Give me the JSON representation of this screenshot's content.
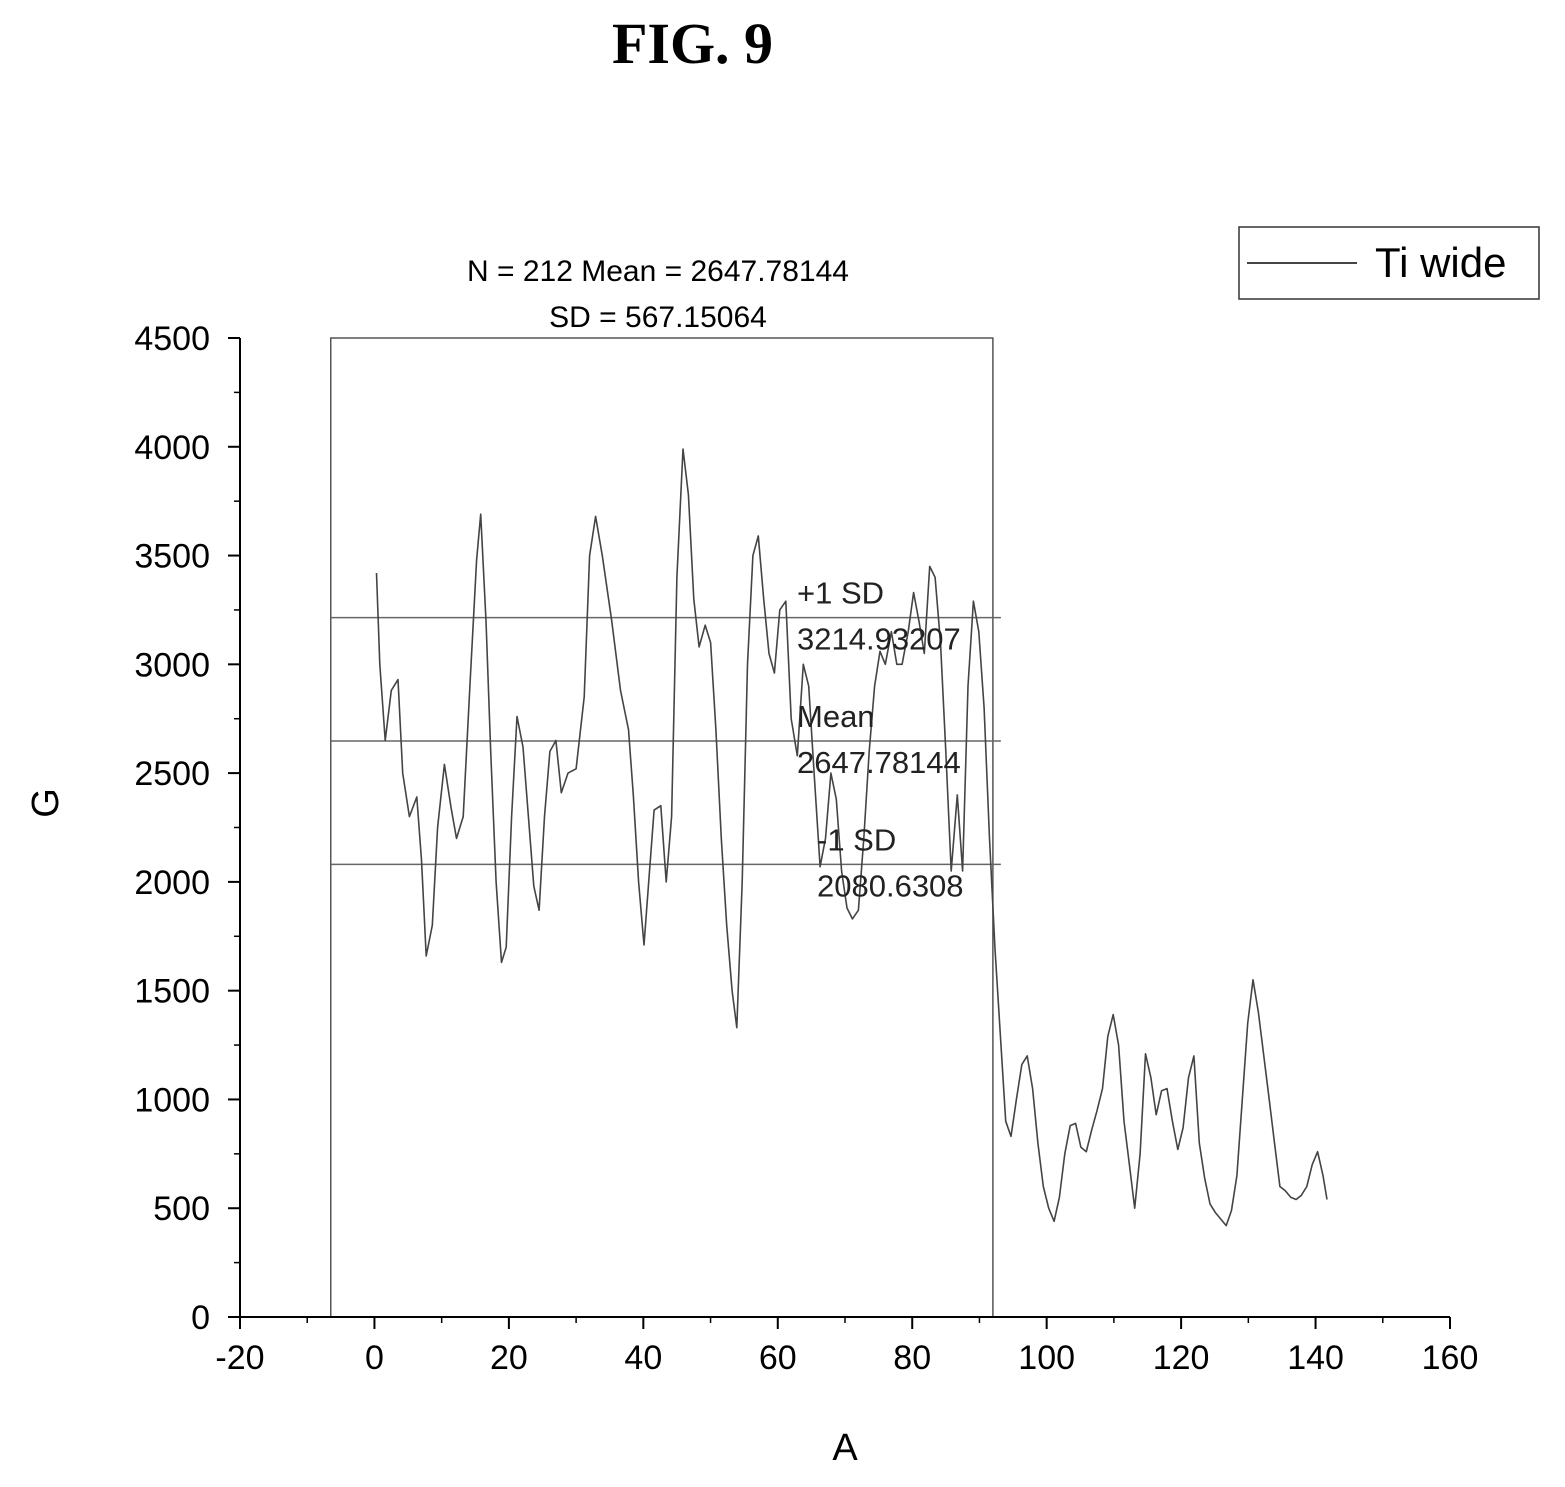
{
  "figure": {
    "title": "FIG. 9"
  },
  "chart_data": {
    "type": "line",
    "xlabel": "A",
    "ylabel": "G",
    "xlim": [
      -20,
      160
    ],
    "ylim": [
      0,
      4500
    ],
    "x_ticks": [
      -20,
      0,
      20,
      40,
      60,
      80,
      100,
      120,
      140,
      160
    ],
    "y_ticks": [
      0,
      500,
      1000,
      1500,
      2000,
      2500,
      3000,
      3500,
      4000,
      4500
    ],
    "grid": false,
    "legend_position": "top-right",
    "series": [
      {
        "name": "Ti wide",
        "color": "#444444",
        "points": [
          [
            0.3,
            3420
          ],
          [
            0.8,
            3000
          ],
          [
            1.6,
            2650
          ],
          [
            2.5,
            2880
          ],
          [
            3.5,
            2930
          ],
          [
            4.2,
            2500
          ],
          [
            5.2,
            2300
          ],
          [
            6.3,
            2390
          ],
          [
            7.0,
            2100
          ],
          [
            7.7,
            1660
          ],
          [
            8.6,
            1800
          ],
          [
            9.4,
            2250
          ],
          [
            10.4,
            2540
          ],
          [
            11.4,
            2340
          ],
          [
            12.2,
            2200
          ],
          [
            13.2,
            2300
          ],
          [
            14.2,
            2900
          ],
          [
            15.2,
            3480
          ],
          [
            15.8,
            3690
          ],
          [
            16.6,
            3200
          ],
          [
            17.3,
            2600
          ],
          [
            18.1,
            2000
          ],
          [
            18.9,
            1630
          ],
          [
            19.6,
            1700
          ],
          [
            20.4,
            2300
          ],
          [
            21.2,
            2760
          ],
          [
            22.1,
            2620
          ],
          [
            22.9,
            2300
          ],
          [
            23.7,
            1980
          ],
          [
            24.5,
            1870
          ],
          [
            25.3,
            2300
          ],
          [
            26.1,
            2600
          ],
          [
            27.0,
            2650
          ],
          [
            27.8,
            2410
          ],
          [
            28.8,
            2500
          ],
          [
            30.0,
            2520
          ],
          [
            31.2,
            2850
          ],
          [
            32.0,
            3500
          ],
          [
            32.9,
            3680
          ],
          [
            33.9,
            3500
          ],
          [
            35.3,
            3200
          ],
          [
            36.6,
            2880
          ],
          [
            37.8,
            2700
          ],
          [
            38.5,
            2400
          ],
          [
            39.3,
            2000
          ],
          [
            40.1,
            1710
          ],
          [
            40.8,
            2000
          ],
          [
            41.6,
            2330
          ],
          [
            42.6,
            2350
          ],
          [
            43.4,
            2000
          ],
          [
            44.2,
            2300
          ],
          [
            45.0,
            3400
          ],
          [
            45.9,
            3990
          ],
          [
            46.7,
            3780
          ],
          [
            47.5,
            3300
          ],
          [
            48.3,
            3080
          ],
          [
            49.2,
            3180
          ],
          [
            50.0,
            3100
          ],
          [
            50.8,
            2700
          ],
          [
            51.6,
            2200
          ],
          [
            52.4,
            1800
          ],
          [
            53.2,
            1500
          ],
          [
            53.9,
            1330
          ],
          [
            54.7,
            2000
          ],
          [
            55.5,
            3000
          ],
          [
            56.3,
            3500
          ],
          [
            57.1,
            3590
          ],
          [
            57.9,
            3300
          ],
          [
            58.7,
            3050
          ],
          [
            59.5,
            2960
          ],
          [
            60.3,
            3250
          ],
          [
            61.2,
            3290
          ],
          [
            62.0,
            2750
          ],
          [
            62.9,
            2580
          ],
          [
            63.8,
            3000
          ],
          [
            64.6,
            2900
          ],
          [
            65.4,
            2500
          ],
          [
            66.3,
            2070
          ],
          [
            67.1,
            2200
          ],
          [
            67.9,
            2500
          ],
          [
            68.7,
            2380
          ],
          [
            69.5,
            2050
          ],
          [
            70.3,
            1880
          ],
          [
            71.1,
            1830
          ],
          [
            72.0,
            1870
          ],
          [
            72.8,
            2200
          ],
          [
            73.6,
            2600
          ],
          [
            74.4,
            2900
          ],
          [
            75.2,
            3060
          ],
          [
            76.0,
            3000
          ],
          [
            76.9,
            3150
          ],
          [
            77.7,
            3000
          ],
          [
            78.5,
            3000
          ],
          [
            79.4,
            3150
          ],
          [
            80.2,
            3330
          ],
          [
            81.0,
            3200
          ],
          [
            81.8,
            3050
          ],
          [
            82.6,
            3450
          ],
          [
            83.4,
            3400
          ],
          [
            84.2,
            3100
          ],
          [
            85.0,
            2600
          ],
          [
            85.8,
            2050
          ],
          [
            86.7,
            2400
          ],
          [
            87.5,
            2050
          ],
          [
            88.3,
            2900
          ],
          [
            89.1,
            3290
          ],
          [
            89.9,
            3150
          ],
          [
            90.7,
            2800
          ],
          [
            91.5,
            2200
          ],
          [
            92.3,
            1700
          ],
          [
            93.1,
            1300
          ],
          [
            93.9,
            900
          ],
          [
            94.7,
            830
          ],
          [
            95.5,
            1000
          ],
          [
            96.3,
            1160
          ],
          [
            97.1,
            1200
          ],
          [
            97.9,
            1050
          ],
          [
            98.7,
            800
          ],
          [
            99.5,
            600
          ],
          [
            100.3,
            500
          ],
          [
            101.1,
            440
          ],
          [
            101.9,
            550
          ],
          [
            102.7,
            750
          ],
          [
            103.5,
            880
          ],
          [
            104.3,
            890
          ],
          [
            105.1,
            780
          ],
          [
            105.9,
            760
          ],
          [
            106.7,
            860
          ],
          [
            107.5,
            950
          ],
          [
            108.3,
            1050
          ],
          [
            109.1,
            1290
          ],
          [
            109.9,
            1390
          ],
          [
            110.7,
            1250
          ],
          [
            111.5,
            900
          ],
          [
            112.3,
            700
          ],
          [
            113.1,
            500
          ],
          [
            113.9,
            750
          ],
          [
            114.7,
            1210
          ],
          [
            115.5,
            1100
          ],
          [
            116.3,
            930
          ],
          [
            117.1,
            1040
          ],
          [
            117.9,
            1050
          ],
          [
            118.7,
            900
          ],
          [
            119.5,
            770
          ],
          [
            120.3,
            870
          ],
          [
            121.1,
            1100
          ],
          [
            121.9,
            1200
          ],
          [
            122.7,
            800
          ],
          [
            123.5,
            640
          ],
          [
            124.3,
            520
          ],
          [
            125.1,
            480
          ],
          [
            125.9,
            450
          ],
          [
            126.7,
            420
          ],
          [
            127.5,
            490
          ],
          [
            128.3,
            650
          ],
          [
            129.1,
            1000
          ],
          [
            129.9,
            1350
          ],
          [
            130.7,
            1550
          ],
          [
            131.5,
            1400
          ],
          [
            132.3,
            1200
          ],
          [
            133.1,
            1000
          ],
          [
            133.9,
            800
          ],
          [
            134.7,
            600
          ],
          [
            135.5,
            580
          ],
          [
            136.3,
            550
          ],
          [
            137.1,
            540
          ],
          [
            137.9,
            560
          ],
          [
            138.7,
            600
          ],
          [
            139.5,
            700
          ],
          [
            140.3,
            760
          ],
          [
            141.1,
            650
          ],
          [
            141.7,
            540
          ]
        ]
      }
    ],
    "reference_lines": [
      {
        "label": "+1 SD",
        "value_text": "3214.93207",
        "y": 3214.93207
      },
      {
        "label": "Mean",
        "value_text": "2647.78144",
        "y": 2647.78144
      },
      {
        "label": "-1 SD",
        "value_text": "2080.6308",
        "y": 2080.6308
      }
    ],
    "stats_box": {
      "x_range": [
        -6.5,
        92
      ],
      "line1": "N = 212 Mean = 2647.78144",
      "line2": "SD = 567.15064"
    },
    "legend": [
      {
        "label": "Ti wide"
      }
    ]
  }
}
